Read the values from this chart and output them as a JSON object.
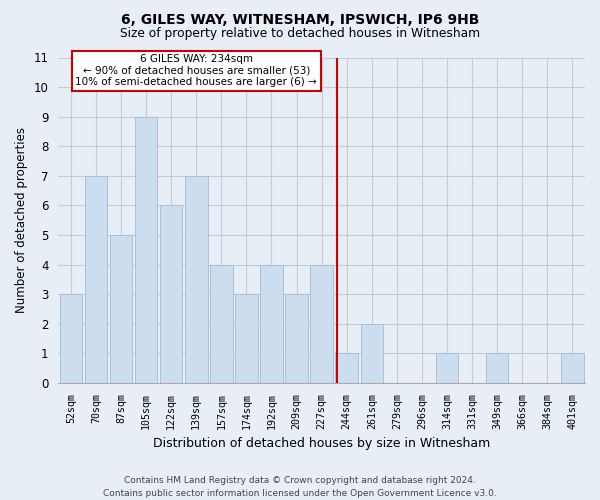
{
  "title1": "6, GILES WAY, WITNESHAM, IPSWICH, IP6 9HB",
  "title2": "Size of property relative to detached houses in Witnesham",
  "xlabel": "Distribution of detached houses by size in Witnesham",
  "ylabel": "Number of detached properties",
  "footnote": "Contains HM Land Registry data © Crown copyright and database right 2024.\nContains public sector information licensed under the Open Government Licence v3.0.",
  "bar_labels": [
    "52sqm",
    "70sqm",
    "87sqm",
    "105sqm",
    "122sqm",
    "139sqm",
    "157sqm",
    "174sqm",
    "192sqm",
    "209sqm",
    "227sqm",
    "244sqm",
    "261sqm",
    "279sqm",
    "296sqm",
    "314sqm",
    "331sqm",
    "349sqm",
    "366sqm",
    "384sqm",
    "401sqm"
  ],
  "bar_values": [
    3,
    7,
    5,
    9,
    6,
    7,
    4,
    3,
    4,
    3,
    4,
    1,
    2,
    0,
    0,
    1,
    0,
    1,
    0,
    0,
    1
  ],
  "bar_color": "#ccddf0",
  "bar_edgecolor": "#a8c0dc",
  "ylim": [
    0,
    11
  ],
  "yticks": [
    0,
    1,
    2,
    3,
    4,
    5,
    6,
    7,
    8,
    9,
    10,
    11
  ],
  "vline_x_index": 10.62,
  "vline_color": "#cc0000",
  "annotation_text": "6 GILES WAY: 234sqm\n← 90% of detached houses are smaller (53)\n10% of semi-detached houses are larger (6) →",
  "annotation_box_color": "#ffffff",
  "annotation_box_edgecolor": "#cc0000",
  "grid_color": "#c0ccd8",
  "bg_color": "#e8eef5"
}
